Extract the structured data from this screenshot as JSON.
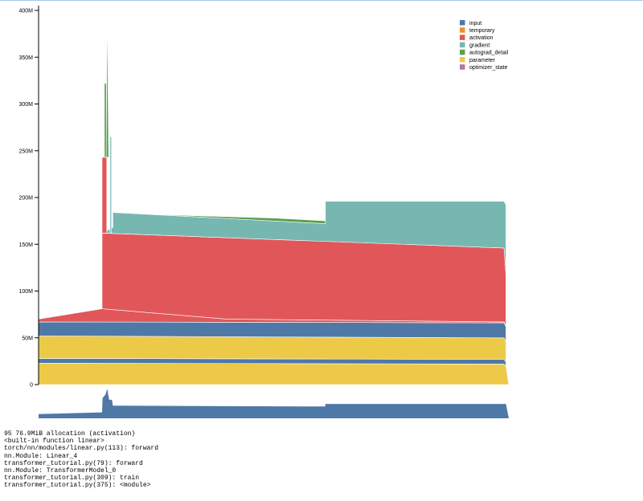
{
  "chart_data": {
    "type": "area",
    "title": "",
    "xlabel": "",
    "ylabel": "",
    "ylim": [
      0,
      400
    ],
    "y_unit": "M",
    "y_ticks": [
      0,
      50,
      100,
      150,
      200,
      250,
      300,
      350,
      400
    ],
    "y_tick_labels": [
      "0",
      "50M",
      "100M",
      "150M",
      "200M",
      "250M",
      "300M",
      "350M",
      "400M"
    ],
    "x_range": [
      0,
      100
    ],
    "legend_position": "top-right",
    "series": [
      {
        "name": "input",
        "color": "#4e79a7"
      },
      {
        "name": "temporary",
        "color": "#f28e2b"
      },
      {
        "name": "activation",
        "color": "#e15759"
      },
      {
        "name": "gradient",
        "color": "#76b7b2"
      },
      {
        "name": "autograd_detail",
        "color": "#59a14f"
      },
      {
        "name": "parameter",
        "color": "#edc948"
      },
      {
        "name": "optimizer_state",
        "color": "#b07aa1"
      }
    ],
    "layers": [
      {
        "series": "parameter",
        "points": [
          [
            0,
            0
          ],
          [
            0,
            23
          ],
          [
            99,
            22
          ],
          [
            99.4,
            20
          ],
          [
            100,
            0
          ]
        ]
      },
      {
        "series": "input",
        "points": [
          [
            0,
            23
          ],
          [
            0,
            28
          ],
          [
            99,
            27
          ],
          [
            99.4,
            24
          ],
          [
            99.4,
            20
          ],
          [
            99,
            22
          ]
        ]
      },
      {
        "series": "parameter",
        "points": [
          [
            0,
            28
          ],
          [
            0,
            52
          ],
          [
            99,
            50
          ],
          [
            99.4,
            46
          ],
          [
            99.4,
            24
          ],
          [
            99,
            27
          ]
        ]
      },
      {
        "series": "input",
        "points": [
          [
            0,
            52
          ],
          [
            0,
            67
          ],
          [
            99,
            66
          ],
          [
            99.4,
            62
          ],
          [
            99.4,
            46
          ],
          [
            99,
            50
          ]
        ]
      },
      {
        "series": "activation",
        "points": [
          [
            0,
            67
          ],
          [
            0,
            70
          ],
          [
            13.5,
            81
          ],
          [
            40,
            70
          ],
          [
            99,
            67
          ],
          [
            99.4,
            62
          ],
          [
            99,
            66
          ]
        ]
      },
      {
        "series": "activation",
        "points": [
          [
            13.5,
            81
          ],
          [
            13.5,
            162
          ],
          [
            99,
            146
          ],
          [
            99.4,
            118
          ],
          [
            99.4,
            62
          ],
          [
            99,
            67
          ],
          [
            40,
            70
          ]
        ]
      },
      {
        "series": "gradient",
        "points": [
          [
            13.5,
            162
          ],
          [
            15.8,
            168
          ],
          [
            15.8,
            184
          ],
          [
            61,
            172
          ],
          [
            61,
            196
          ],
          [
            99,
            196
          ],
          [
            99.4,
            192
          ],
          [
            99.4,
            118
          ],
          [
            99,
            146
          ]
        ]
      },
      {
        "series": "autograd_detail",
        "points": [
          [
            15.8,
            184
          ],
          [
            30,
            181
          ],
          [
            50,
            178
          ],
          [
            61,
            175
          ],
          [
            61,
            172
          ]
        ]
      },
      {
        "series": "activation",
        "points": [
          [
            13.5,
            162
          ],
          [
            13.5,
            243
          ],
          [
            14.5,
            243
          ],
          [
            14.5,
            162
          ]
        ]
      },
      {
        "series": "autograd_detail",
        "points": [
          [
            14,
            243
          ],
          [
            14,
            322
          ],
          [
            14.4,
            322
          ],
          [
            14.4,
            243
          ]
        ]
      },
      {
        "series": "autograd_detail",
        "points": [
          [
            14.4,
            243
          ],
          [
            14.6,
            405
          ],
          [
            14.9,
            243
          ]
        ]
      },
      {
        "series": "gradient",
        "points": [
          [
            15.2,
            162
          ],
          [
            15.2,
            265
          ],
          [
            15.5,
            265
          ],
          [
            15.5,
            162
          ]
        ]
      }
    ],
    "overview_series": "input",
    "overview_points": [
      [
        0,
        0
      ],
      [
        0,
        5
      ],
      [
        13.5,
        7
      ],
      [
        13.6,
        24
      ],
      [
        14.2,
        28
      ],
      [
        14.6,
        35
      ],
      [
        15,
        22
      ],
      [
        15.6,
        22
      ],
      [
        15.8,
        15
      ],
      [
        61,
        14
      ],
      [
        61,
        17
      ],
      [
        99,
        17
      ],
      [
        99.4,
        17
      ],
      [
        100,
        0
      ]
    ]
  },
  "details": [
    "95 76.9MiB allocation (activation)",
    "<built-in function linear>",
    "torch/nn/modules/linear.py(113): forward",
    "nn.Module: Linear_4",
    "transformer_tutorial.py(79): forward",
    "nn.Module: TransformerModel_0",
    "transformer_tutorial.py(309): train",
    "transformer_tutorial.py(375): <module>"
  ]
}
